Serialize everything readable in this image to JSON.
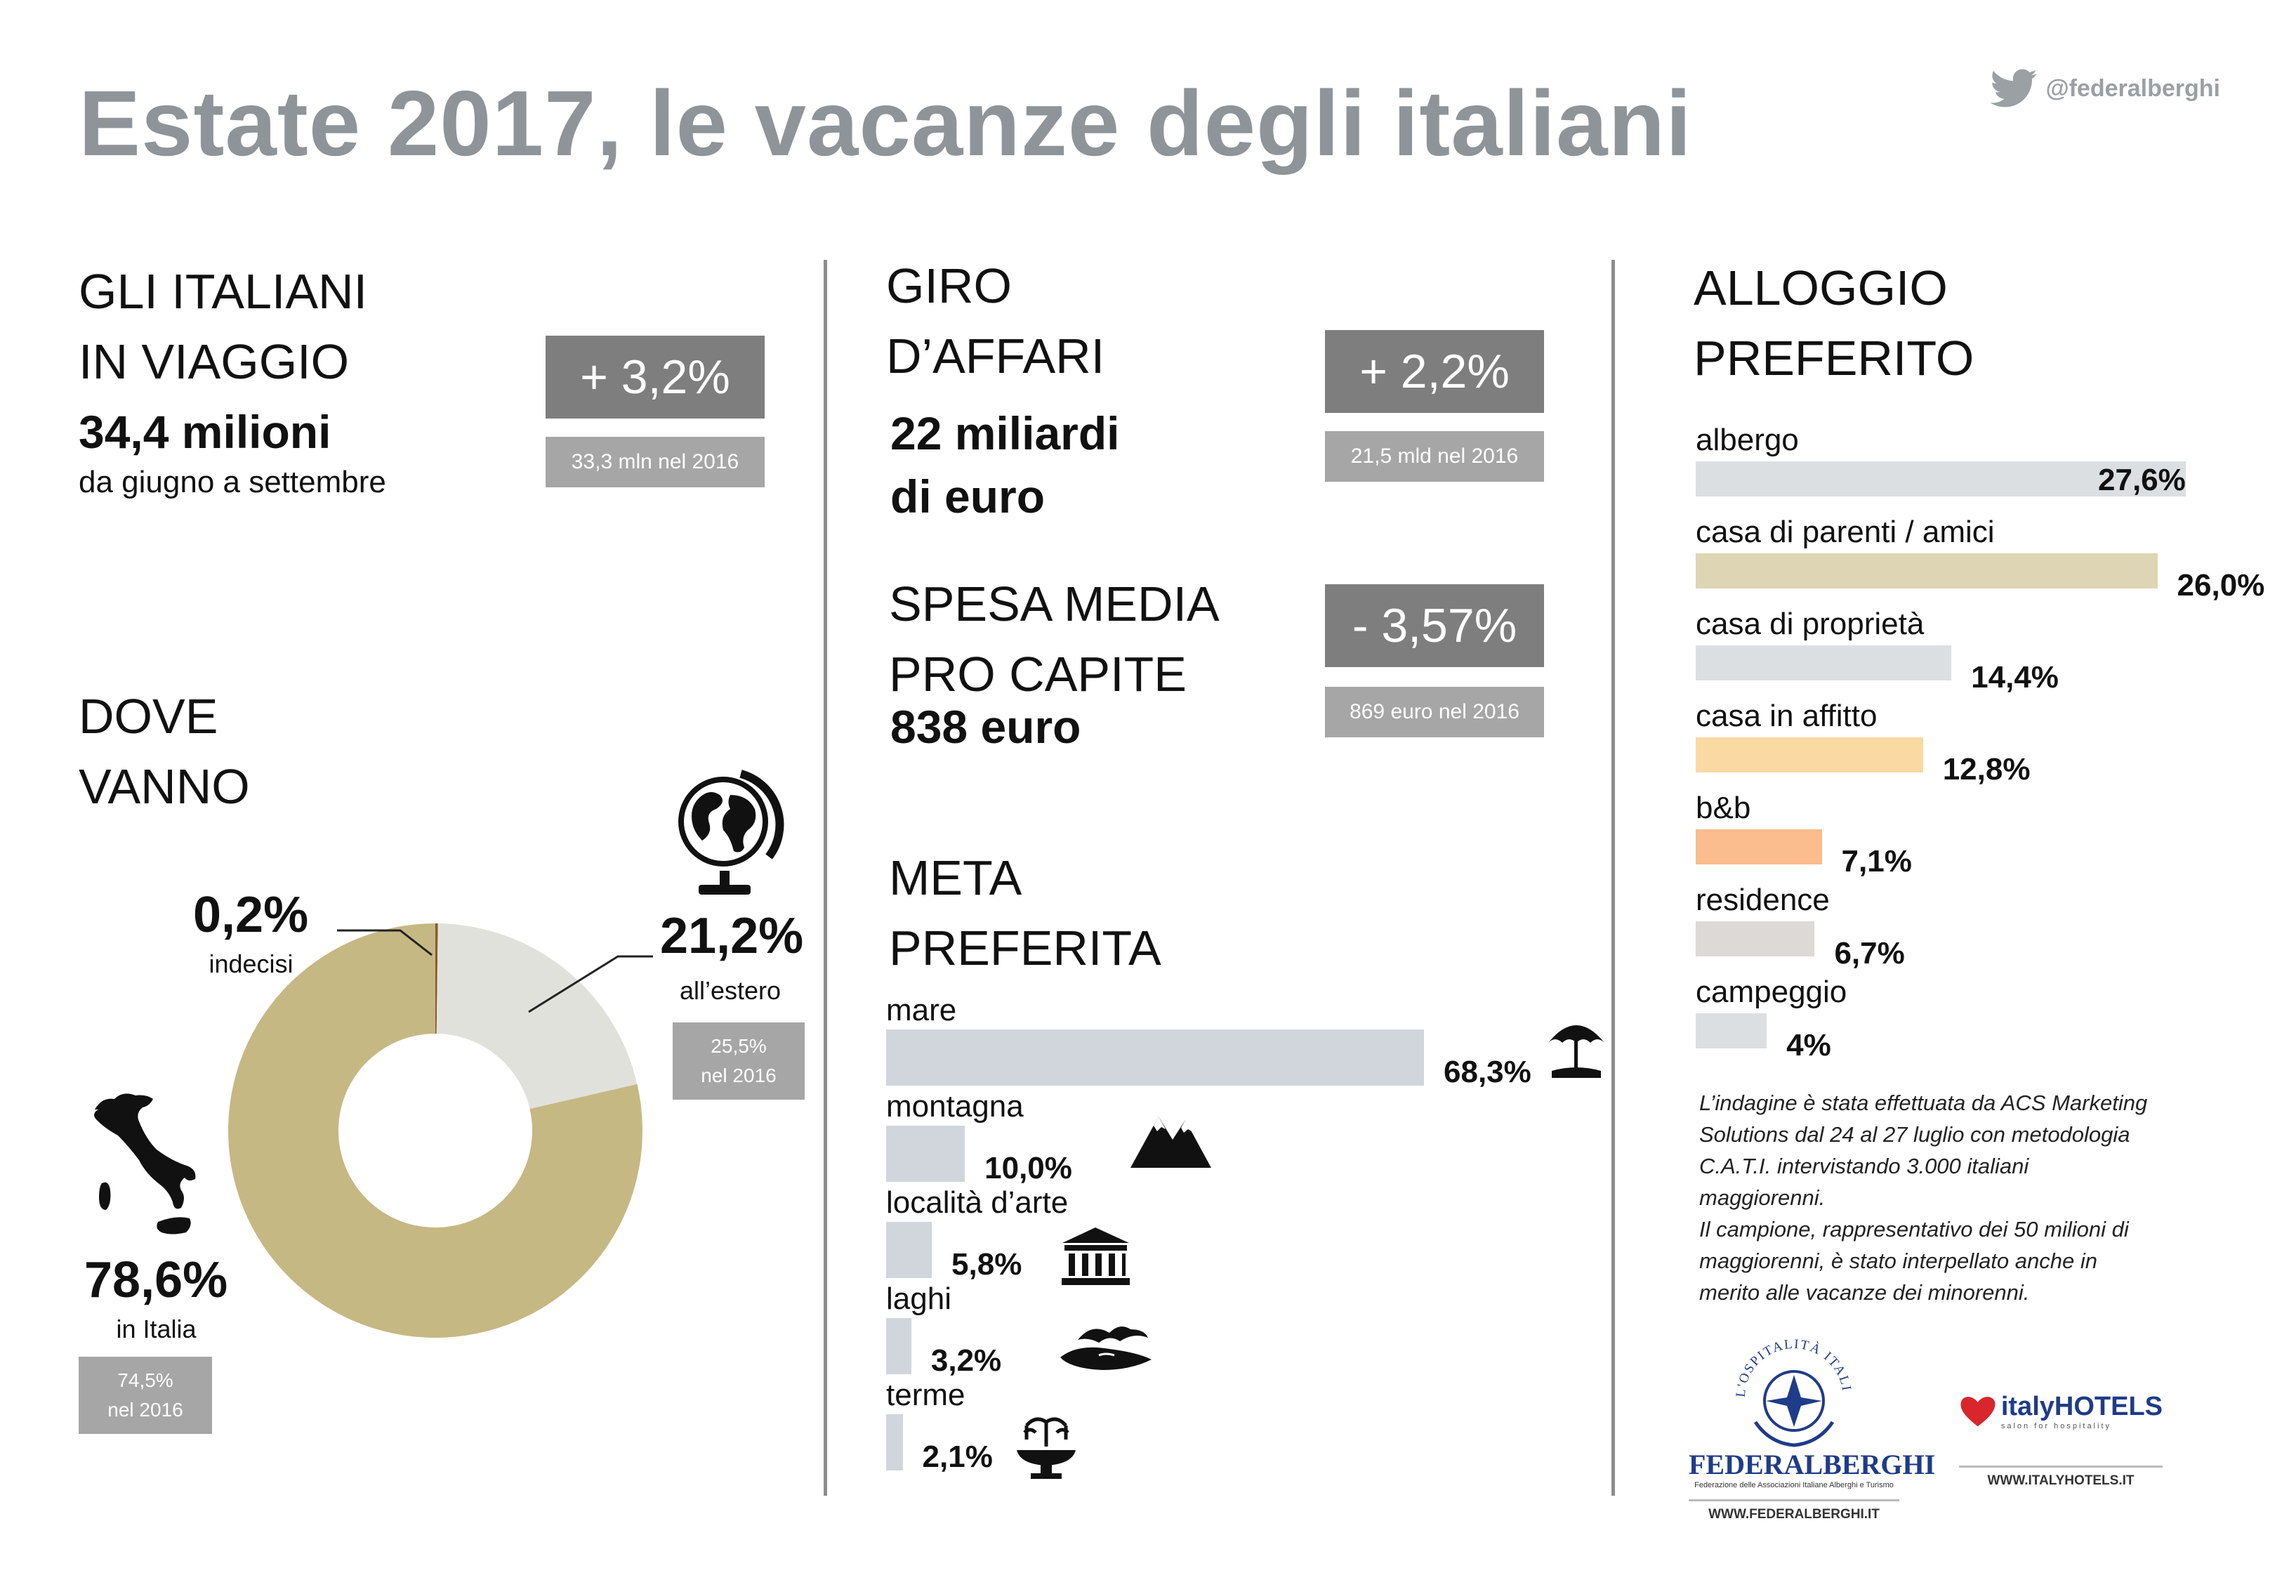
{
  "title": "Estate 2017, le vacanze degli italiani",
  "twitter_handle": "@federalberghi",
  "travelers": {
    "heading_line1": "GLI ITALIANI",
    "heading_line2": "IN VIAGGIO",
    "value": "34,4 milioni",
    "period": "da giugno a settembre",
    "change": "+ 3,2%",
    "previous": "33,3 mln nel 2016"
  },
  "revenue": {
    "heading_line1": "GIRO",
    "heading_line2": "D’AFFARI",
    "value_line1": "22 miliardi",
    "value_line2": "di euro",
    "change": "+ 2,2%",
    "previous": "21,5 mld nel 2016"
  },
  "spending": {
    "heading_line1": "SPESA MEDIA",
    "heading_line2": "PRO CAPITE",
    "value": "838 euro",
    "change": "- 3,57%",
    "previous": "869 euro nel 2016"
  },
  "where": {
    "heading_line1": "DOVE",
    "heading_line2": "VANNO",
    "undecided_pct": "0,2%",
    "undecided_label": "indecisi",
    "abroad_pct": "21,2%",
    "abroad_label": "all’estero",
    "abroad_prev_line1": "25,5%",
    "abroad_prev_line2": "nel 2016",
    "italy_pct": "78,6%",
    "italy_label": "in Italia",
    "italy_prev_line1": "74,5%",
    "italy_prev_line2": "nel 2016"
  },
  "destination": {
    "heading_line1": "META",
    "heading_line2": "PREFERITA"
  },
  "accommodation": {
    "heading_line1": "ALLOGGIO",
    "heading_line2": "PREFERITO"
  },
  "note": {
    "line1": "L’indagine è stata effettuata da ACS Marketing",
    "line2": "Solutions dal 24 al 27 luglio con metodologia",
    "line3": "C.A.T.I. intervistando 3.000 italiani",
    "line4": "maggiorenni.",
    "line5": "Il campione, rappresentativo dei 50 milioni di",
    "line6": "maggiorenni, è stato interpellato anche in",
    "line7": "merito alle vacanze dei minorenni."
  },
  "logos": {
    "federalberghi_name": "FEDERALBERGHI",
    "federalberghi_tagline": "Federazione delle Associazioni Italiane Alberghi e Turismo",
    "federalberghi_seal": "L'OSPITALITÀ ITALIANA",
    "federalberghi_url": "WWW.FEDERALBERGHI.IT",
    "italyhotels_name": "italyHOTELS",
    "italyhotels_tagline": "salon for hospitality",
    "italyhotels_url": "WWW.ITALYHOTELS.IT"
  },
  "colors": {
    "gold": "#c5b883",
    "light_gray": "#e1e1dc",
    "bar_blue_gray": "#d0d6dc",
    "badge_dark": "#7e7e7e",
    "badge_light": "#a6a6a6",
    "title_gray": "#8e9498"
  },
  "icons": {
    "twitter": "twitter-bird-icon",
    "globe": "globe-icon",
    "italy": "italy-map-icon",
    "mare": "beach-umbrella-icon",
    "montagna": "mountains-icon",
    "arte": "temple-icon",
    "laghi": "lake-icon",
    "terme": "fountain-icon"
  },
  "chart_data": [
    {
      "type": "pie",
      "variant": "donut",
      "categories": [
        "indecisi",
        "all’estero",
        "in Italia"
      ],
      "values": [
        0.2,
        21.2,
        78.6
      ],
      "labels": [
        "0,2%",
        "21,2%",
        "78,6%"
      ],
      "colors": [
        "#8b5a2b",
        "#e1e1dc",
        "#c5b883"
      ]
    },
    {
      "type": "bar",
      "orientation": "horizontal",
      "categories": [
        "mare",
        "montagna",
        "località d’arte",
        "laghi",
        "terme"
      ],
      "values": [
        68.3,
        10.0,
        5.8,
        3.2,
        2.1
      ],
      "labels": [
        "68,3%",
        "10,0%",
        "5,8%",
        "3,2%",
        "2,1%"
      ],
      "colors": [
        "#d0d6dc",
        "#d0d6dc",
        "#d0d6dc",
        "#d0d6dc",
        "#d0d6dc"
      ]
    },
    {
      "type": "bar",
      "orientation": "horizontal",
      "categories": [
        "albergo",
        "casa di parenti / amici",
        "casa di proprietà",
        "casa in affitto",
        "b&b",
        "residence",
        "campeggio"
      ],
      "values": [
        27.6,
        26.0,
        14.4,
        12.8,
        7.1,
        6.7,
        4.0
      ],
      "labels": [
        "27,6%",
        "26,0%",
        "14,4%",
        "12,8%",
        "7,1%",
        "6,7%",
        "4%"
      ],
      "colors": [
        "#dcdfe1",
        "#ddd5b4",
        "#dcdfe1",
        "#fad9a3",
        "#fbbc8e",
        "#dcd9d6",
        "#dcdfe1"
      ]
    }
  ]
}
